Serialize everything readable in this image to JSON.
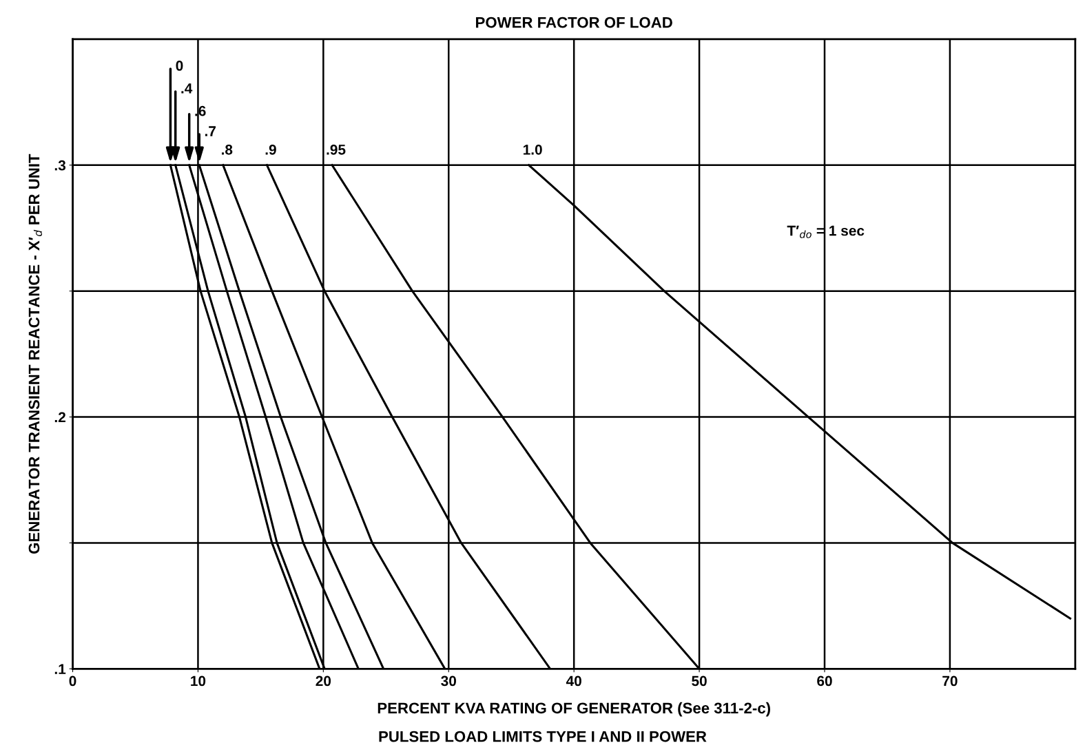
{
  "chart_data": {
    "type": "line",
    "title": "POWER FACTOR OF LOAD",
    "xlabel": "PERCENT KVA RATING OF GENERATOR (See 311-2-c)",
    "ylabel": "GENERATOR TRANSIENT REACTANCE - X′$_{d}$ PER UNIT",
    "annotations": [
      "T′$_{do}$ = 1 sec",
      "PULSED LOAD LIMITS TYPE I AND II POWER"
    ],
    "xlim": [
      0,
      80
    ],
    "xticks": [
      0,
      10,
      20,
      30,
      40,
      50,
      60,
      70
    ],
    "ylim": [
      0.1,
      0.35
    ],
    "yticks": [
      {
        "value": 0.1,
        "label": ".1"
      },
      {
        "value": 0.15,
        "label": null
      },
      {
        "value": 0.2,
        "label": ".2"
      },
      {
        "value": 0.25,
        "label": null
      },
      {
        "value": 0.3,
        "label": ".3"
      }
    ],
    "grid": true,
    "marker": "none",
    "line_style": "solid",
    "series": [
      {
        "name": "0",
        "color": "#000000",
        "x": [
          7.8,
          10.2,
          13.3,
          15.9,
          19.7
        ],
        "values": [
          0.3,
          0.25,
          0.2,
          0.15,
          0.1
        ]
      },
      {
        "name": ".4",
        "color": "#000000",
        "x": [
          8.2,
          10.8,
          13.8,
          16.3,
          20.1
        ],
        "values": [
          0.3,
          0.25,
          0.2,
          0.15,
          0.1
        ]
      },
      {
        "name": ".6",
        "color": "#000000",
        "x": [
          9.3,
          12.3,
          15.4,
          18.4,
          22.8
        ],
        "values": [
          0.3,
          0.25,
          0.2,
          0.15,
          0.1
        ]
      },
      {
        "name": ".7",
        "color": "#000000",
        "x": [
          10.1,
          13.3,
          16.6,
          20.2,
          24.8
        ],
        "values": [
          0.3,
          0.25,
          0.2,
          0.15,
          0.1
        ]
      },
      {
        "name": ".8",
        "color": "#000000",
        "x": [
          12.0,
          15.9,
          19.9,
          23.9,
          29.7
        ],
        "values": [
          0.3,
          0.25,
          0.2,
          0.15,
          0.1
        ]
      },
      {
        "name": ".9",
        "color": "#000000",
        "x": [
          15.5,
          20.1,
          25.5,
          31.0,
          38.1
        ],
        "values": [
          0.3,
          0.25,
          0.2,
          0.15,
          0.1
        ]
      },
      {
        "name": ".95",
        "color": "#000000",
        "x": [
          20.7,
          27.1,
          34.3,
          41.3,
          50.0
        ],
        "values": [
          0.3,
          0.25,
          0.2,
          0.15,
          0.1
        ]
      },
      {
        "name": "1.0",
        "color": "#000000",
        "x": [
          36.4,
          40.0,
          47.2,
          58.7,
          70.2,
          79.6
        ],
        "values": [
          0.3,
          0.284,
          0.25,
          0.2,
          0.15,
          0.12
        ]
      }
    ]
  }
}
